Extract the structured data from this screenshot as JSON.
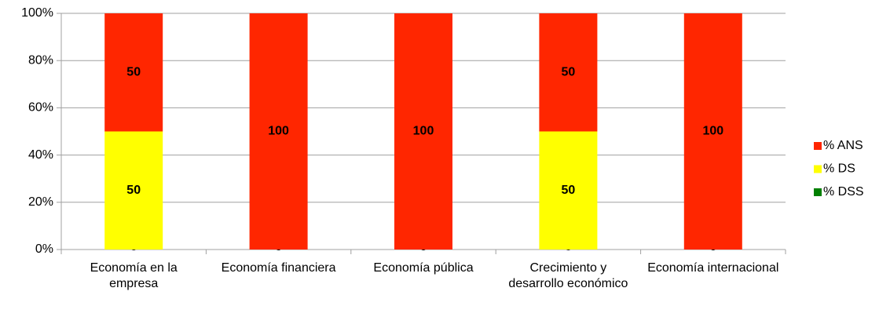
{
  "chart_data": {
    "type": "stacked_bar",
    "categories": [
      "Economía en la empresa",
      "Economía financiera",
      "Economía pública",
      "Crecimiento y desarrollo económico",
      "Economía internacional"
    ],
    "series": [
      {
        "name": "% DSS",
        "color": "#008000",
        "values": [
          0,
          0,
          0,
          0,
          0
        ]
      },
      {
        "name": "% DS",
        "color": "#ffff00",
        "values": [
          50,
          0,
          0,
          50,
          0
        ]
      },
      {
        "name": "% ANS",
        "color": "#ff2600",
        "values": [
          50,
          100,
          100,
          50,
          100
        ]
      }
    ],
    "ylim": [
      0,
      100
    ],
    "yticks": [
      {
        "value": 0,
        "label": "0%"
      },
      {
        "value": 20,
        "label": "20%"
      },
      {
        "value": 40,
        "label": "40%"
      },
      {
        "value": 60,
        "label": "60%"
      },
      {
        "value": 80,
        "label": "80%"
      },
      {
        "value": 100,
        "label": "100%"
      }
    ],
    "grid": true,
    "legend": "right"
  }
}
